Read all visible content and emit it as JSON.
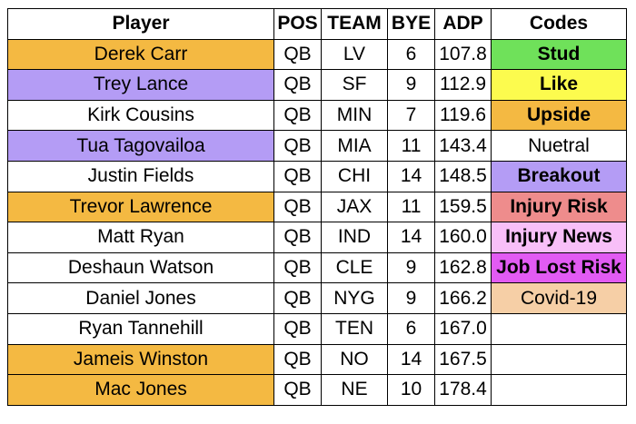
{
  "headers": {
    "player": "Player",
    "pos": "POS",
    "team": "TEAM",
    "bye": "BYE",
    "adp": "ADP",
    "codes": "Codes"
  },
  "rows": [
    {
      "player": "Derek Carr",
      "pos": "QB",
      "team": "LV",
      "bye": "6",
      "adp": "107.8",
      "highlight": "#F4B942",
      "code": "Stud",
      "code_color": "#6FE15A",
      "code_bold": true
    },
    {
      "player": "Trey Lance",
      "pos": "QB",
      "team": "SF",
      "bye": "9",
      "adp": "112.9",
      "highlight": "#B49CF5",
      "code": "Like",
      "code_color": "#FCFB4E",
      "code_bold": true
    },
    {
      "player": "Kirk Cousins",
      "pos": "QB",
      "team": "MIN",
      "bye": "7",
      "adp": "119.6",
      "highlight": "#FFFFFF",
      "code": "Upside",
      "code_color": "#F4B942",
      "code_bold": true
    },
    {
      "player": "Tua Tagovailoa",
      "pos": "QB",
      "team": "MIA",
      "bye": "11",
      "adp": "143.4",
      "highlight": "#B49CF5",
      "code": "Nuetral",
      "code_color": "#FFFFFF",
      "code_bold": false
    },
    {
      "player": "Justin Fields",
      "pos": "QB",
      "team": "CHI",
      "bye": "14",
      "adp": "148.5",
      "highlight": "#FFFFFF",
      "code": "Breakout",
      "code_color": "#B49CF5",
      "code_bold": true
    },
    {
      "player": "Trevor Lawrence",
      "pos": "QB",
      "team": "JAX",
      "bye": "11",
      "adp": "159.5",
      "highlight": "#F4B942",
      "code": "Injury Risk",
      "code_color": "#EE8C8C",
      "code_bold": true
    },
    {
      "player": "Matt Ryan",
      "pos": "QB",
      "team": "IND",
      "bye": "14",
      "adp": "160.0",
      "highlight": "#FFFFFF",
      "code": "Injury News",
      "code_color": "#F8BFF8",
      "code_bold": true
    },
    {
      "player": "Deshaun Watson",
      "pos": "QB",
      "team": "CLE",
      "bye": "9",
      "adp": "162.8",
      "highlight": "#FFFFFF",
      "code": "Job Lost Risk",
      "code_color": "#E25BF3",
      "code_bold": true
    },
    {
      "player": "Daniel Jones",
      "pos": "QB",
      "team": "NYG",
      "bye": "9",
      "adp": "166.2",
      "highlight": "#FFFFFF",
      "code": "Covid-19",
      "code_color": "#F6CFA6",
      "code_bold": false
    },
    {
      "player": "Ryan Tannehill",
      "pos": "QB",
      "team": "TEN",
      "bye": "6",
      "adp": "167.0",
      "highlight": "#FFFFFF",
      "code": "",
      "code_color": "#FFFFFF",
      "code_bold": false
    },
    {
      "player": "Jameis Winston",
      "pos": "QB",
      "team": "NO",
      "bye": "14",
      "adp": "167.5",
      "highlight": "#F4B942",
      "code": "",
      "code_color": "#FFFFFF",
      "code_bold": false
    },
    {
      "player": "Mac Jones",
      "pos": "QB",
      "team": "NE",
      "bye": "10",
      "adp": "178.4",
      "highlight": "#F4B942",
      "code": "",
      "code_color": "#FFFFFF",
      "code_bold": false
    }
  ]
}
